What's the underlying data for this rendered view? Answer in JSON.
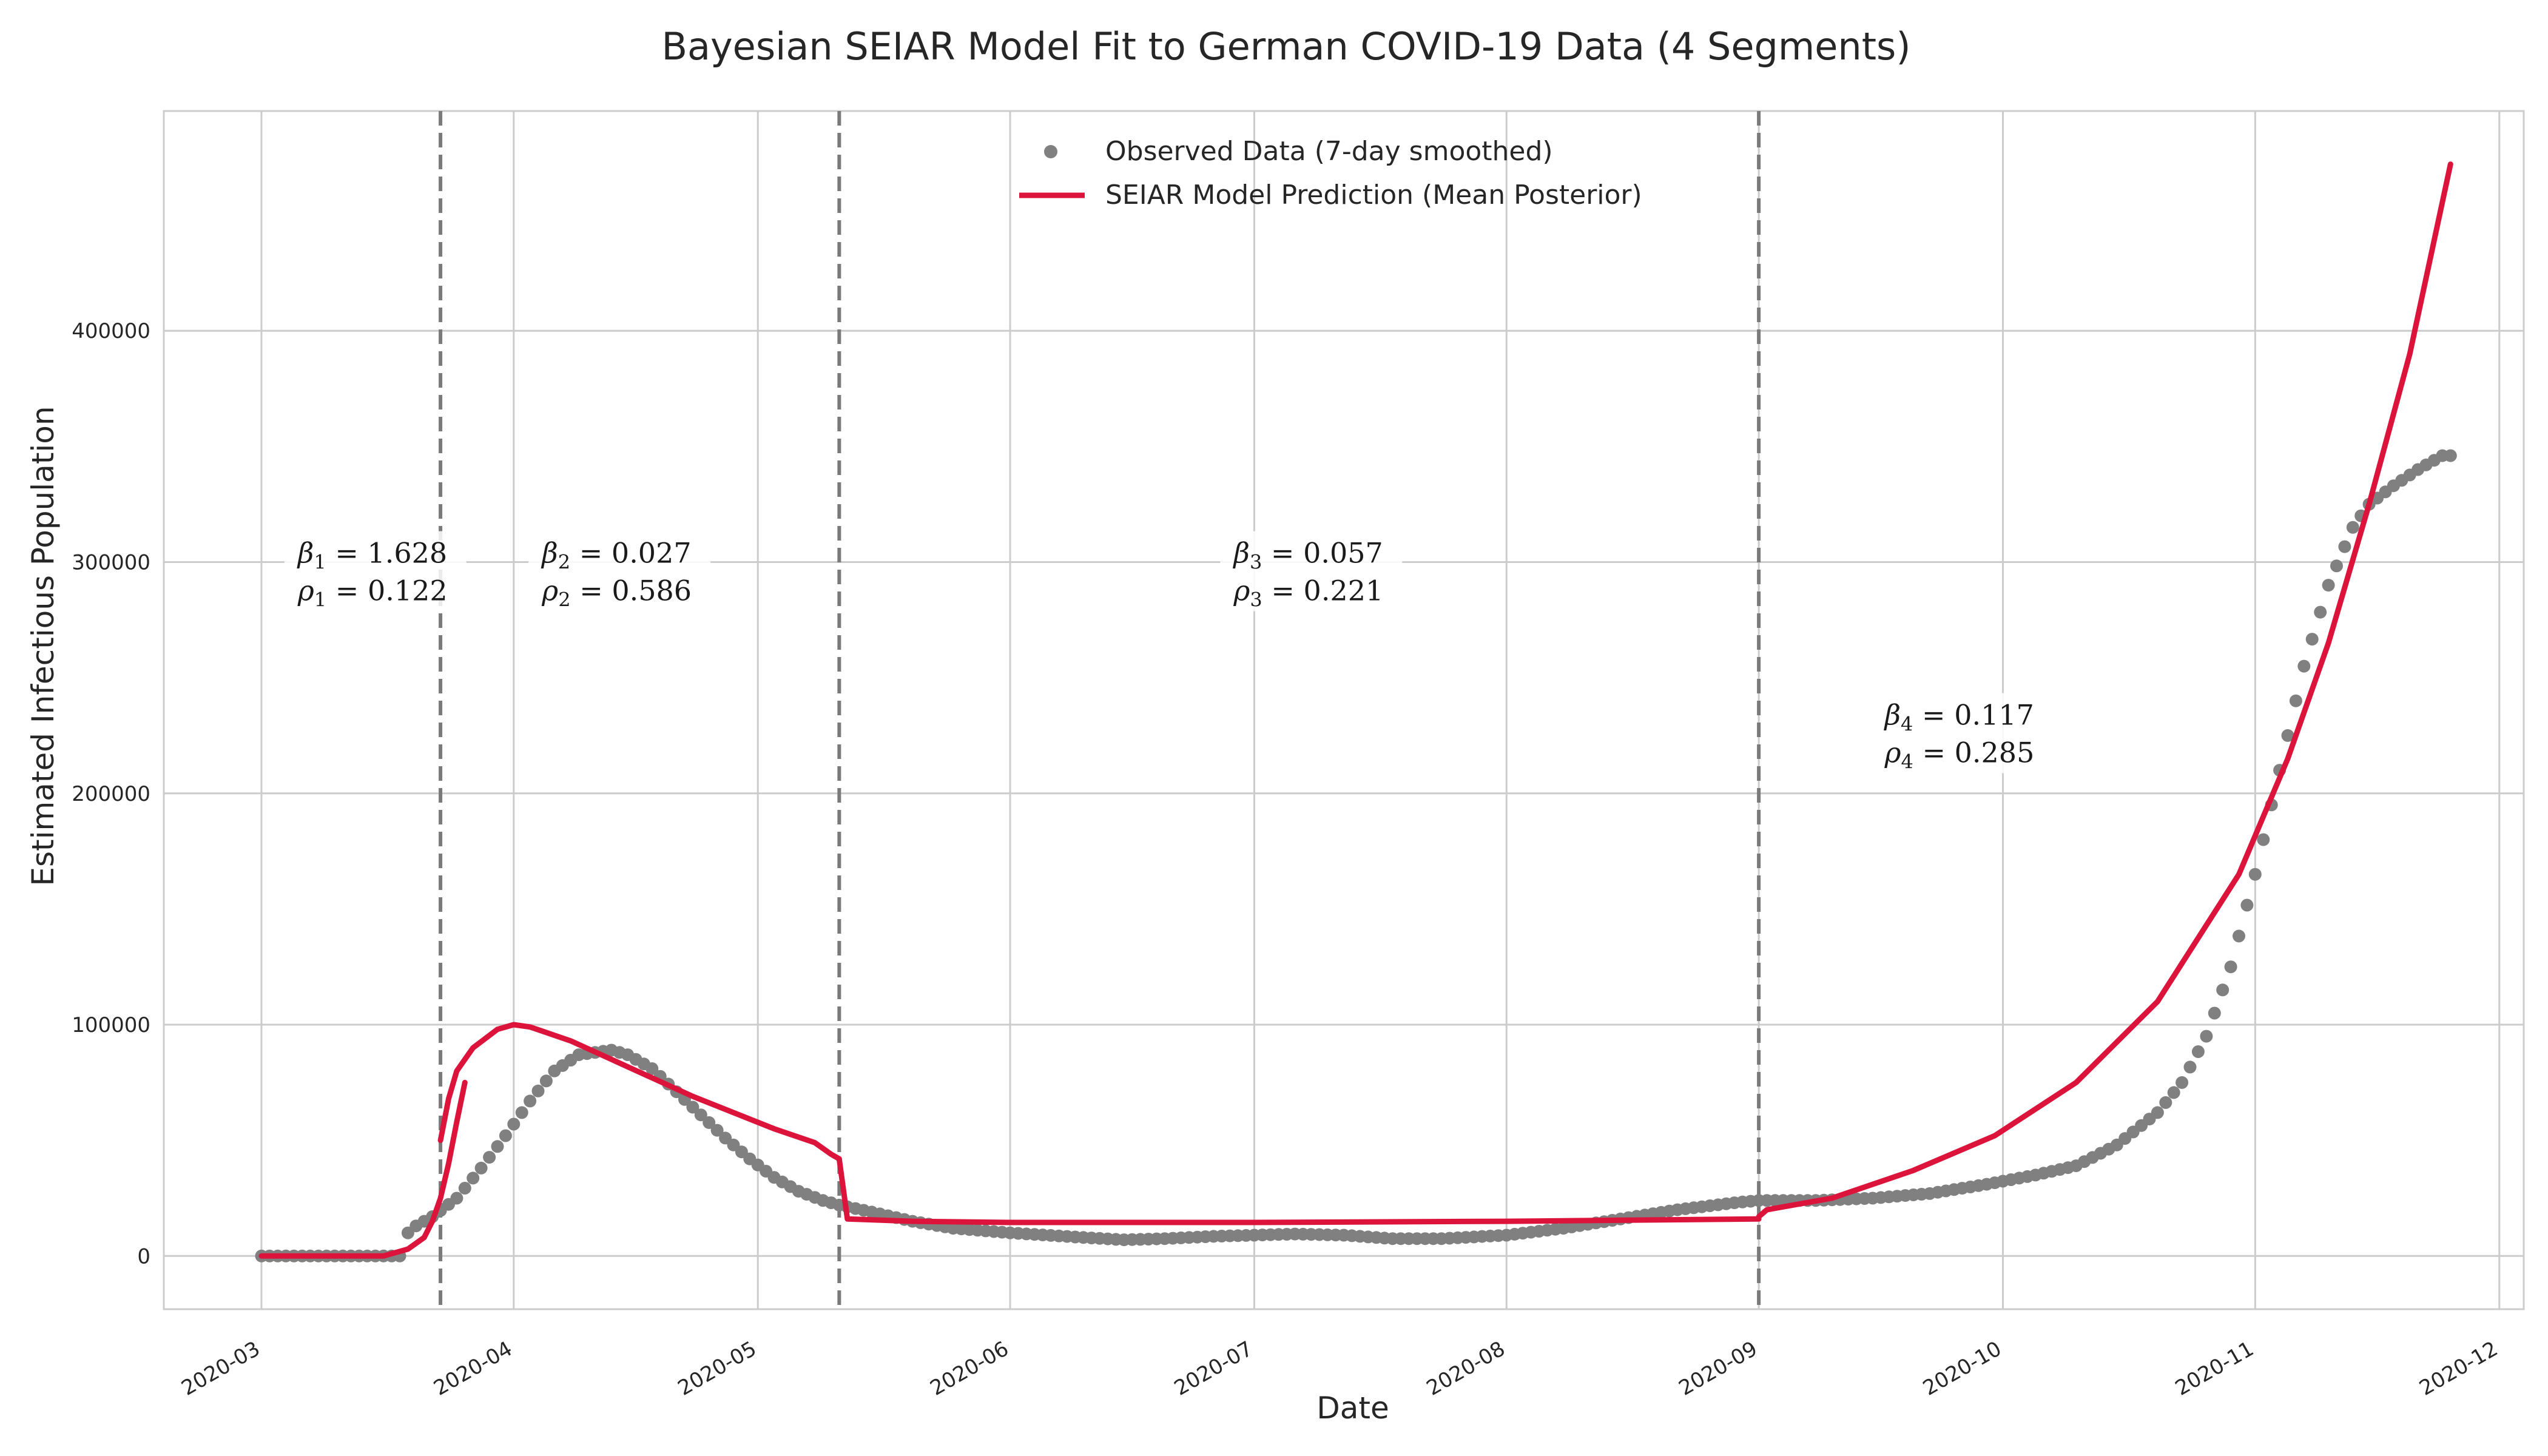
{
  "chart_data": {
    "type": "line",
    "title": "Bayesian SEIAR Model Fit to German COVID-19 Data (4 Segments)",
    "xlabel": "Date",
    "ylabel": "Estimated Infectious Population",
    "xlim": [
      "2020-02-18",
      "2020-12-04"
    ],
    "ylim": [
      -23000,
      495000
    ],
    "x_ticks": [
      "2020-03",
      "2020-04",
      "2020-05",
      "2020-06",
      "2020-07",
      "2020-08",
      "2020-09",
      "2020-10",
      "2020-11",
      "2020-12"
    ],
    "y_ticks": [
      0,
      100000,
      200000,
      300000,
      400000
    ],
    "grid": true,
    "legend": {
      "placement": "upper center",
      "entries": [
        "Observed Data (7-day smoothed)",
        "SEIAR Model Prediction (Mean Posterior)"
      ]
    },
    "colors": {
      "observed": "#808080",
      "model": "#dc143c",
      "changepoint": "#7a7a7a",
      "grid": "#cccccc"
    },
    "change_points": [
      "2020-03-23",
      "2020-05-11",
      "2020-09-01"
    ],
    "annotations": [
      {
        "date": "2020-03-15",
        "y": 295000,
        "beta_label": "β",
        "rho_label": "ρ",
        "idx": "1",
        "beta": "1.628",
        "rho": "0.122"
      },
      {
        "date": "2020-04-14",
        "y": 295000,
        "beta_label": "β",
        "rho_label": "ρ",
        "idx": "2",
        "beta": "0.027",
        "rho": "0.586"
      },
      {
        "date": "2020-07-08",
        "y": 295000,
        "beta_label": "β",
        "rho_label": "ρ",
        "idx": "3",
        "beta": "0.057",
        "rho": "0.221"
      },
      {
        "date": "2020-09-26",
        "y": 225000,
        "beta_label": "β",
        "rho_label": "ρ",
        "idx": "4",
        "beta": "0.117",
        "rho": "0.285"
      }
    ],
    "series": [
      {
        "name": "Observed Data (7-day smoothed)",
        "style": "scatter",
        "x": [
          "2020-03-01",
          "2020-03-18",
          "2020-03-19",
          "2020-03-20",
          "2020-03-22",
          "2020-03-25",
          "2020-03-28",
          "2020-03-31",
          "2020-04-03",
          "2020-04-06",
          "2020-04-09",
          "2020-04-11",
          "2020-04-13",
          "2020-04-15",
          "2020-04-18",
          "2020-04-21",
          "2020-04-24",
          "2020-04-27",
          "2020-04-30",
          "2020-05-03",
          "2020-05-06",
          "2020-05-09",
          "2020-05-11",
          "2020-05-15",
          "2020-05-20",
          "2020-05-25",
          "2020-06-01",
          "2020-06-10",
          "2020-06-15",
          "2020-06-20",
          "2020-06-26",
          "2020-07-01",
          "2020-07-06",
          "2020-07-12",
          "2020-07-18",
          "2020-07-24",
          "2020-08-01",
          "2020-08-08",
          "2020-08-15",
          "2020-08-22",
          "2020-08-29",
          "2020-09-01",
          "2020-09-08",
          "2020-09-15",
          "2020-09-22",
          "2020-09-29",
          "2020-10-05",
          "2020-10-10",
          "2020-10-15",
          "2020-10-20",
          "2020-10-23",
          "2020-10-26",
          "2020-10-29",
          "2020-11-01",
          "2020-11-04",
          "2020-11-07",
          "2020-11-10",
          "2020-11-13",
          "2020-11-15",
          "2020-11-18",
          "2020-11-21",
          "2020-11-24",
          "2020-11-25"
        ],
        "values": [
          0,
          0,
          10000,
          13000,
          17000,
          25000,
          38000,
          52000,
          67000,
          80000,
          87000,
          88000,
          89000,
          87000,
          81000,
          71000,
          61000,
          51000,
          42000,
          34000,
          28000,
          24000,
          22000,
          19000,
          15000,
          12000,
          10000,
          8000,
          7000,
          7500,
          8500,
          9000,
          9500,
          9000,
          7500,
          7500,
          9000,
          12000,
          16000,
          20000,
          23000,
          24000,
          24000,
          25000,
          27000,
          31000,
          35000,
          39000,
          48000,
          62000,
          75000,
          95000,
          125000,
          165000,
          210000,
          255000,
          290000,
          315000,
          325000,
          333000,
          340000,
          346000,
          346000
        ]
      },
      {
        "name": "SEIAR Model Prediction (Mean Posterior)",
        "style": "line",
        "segments": [
          {
            "x": [
              "2020-03-01",
              "2020-03-16",
              "2020-03-19",
              "2020-03-21",
              "2020-03-22",
              "2020-03-23",
              "2020-03-24",
              "2020-03-25",
              "2020-03-26"
            ],
            "values": [
              0,
              0,
              3000,
              8000,
              15000,
              25000,
              40000,
              58000,
              75000
            ]
          },
          {
            "x": [
              "2020-03-23",
              "2020-03-24",
              "2020-03-25",
              "2020-03-27",
              "2020-03-30",
              "2020-04-01",
              "2020-04-03",
              "2020-04-08",
              "2020-04-13",
              "2020-04-18",
              "2020-04-23",
              "2020-04-28",
              "2020-05-03",
              "2020-05-08",
              "2020-05-10",
              "2020-05-11"
            ],
            "values": [
              50000,
              68000,
              80000,
              90000,
              98000,
              100000,
              99000,
              93000,
              85000,
              77000,
              69000,
              62000,
              55000,
              49000,
              44000,
              42000
            ]
          },
          {
            "x": [
              "2020-05-11",
              "2020-05-12",
              "2020-05-20",
              "2020-06-01",
              "2020-07-01",
              "2020-08-01",
              "2020-09-01"
            ],
            "values": [
              42000,
              16000,
              15000,
              14500,
              14500,
              15000,
              16000
            ]
          },
          {
            "x": [
              "2020-09-01",
              "2020-09-02",
              "2020-09-10",
              "2020-09-20",
              "2020-09-30",
              "2020-10-10",
              "2020-10-20",
              "2020-10-30",
              "2020-11-05",
              "2020-11-10",
              "2020-11-15",
              "2020-11-20",
              "2020-11-25"
            ],
            "values": [
              17000,
              20000,
              25000,
              37000,
              52000,
              75000,
              110000,
              165000,
              215000,
              265000,
              325000,
              390000,
              472000
            ]
          }
        ]
      }
    ]
  }
}
